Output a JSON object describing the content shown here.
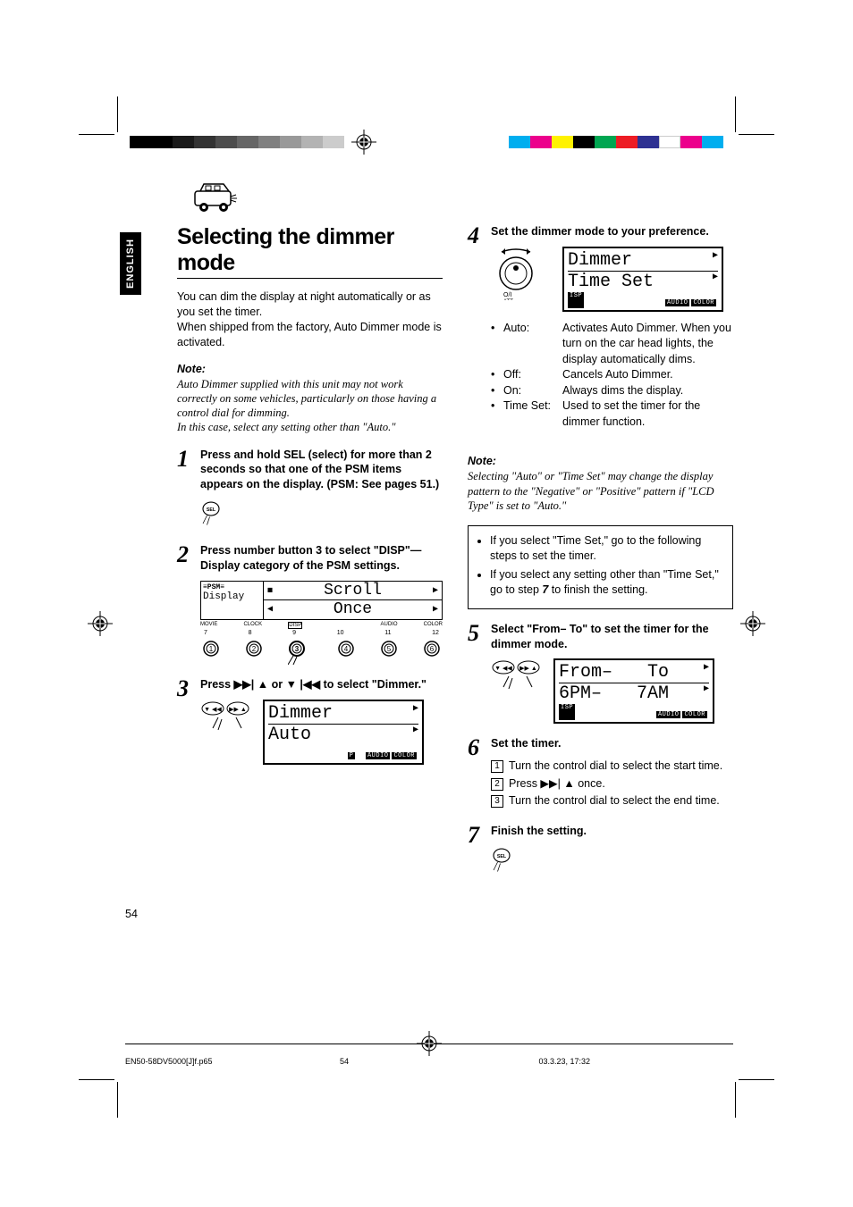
{
  "meta": {
    "language_tab": "ENGLISH",
    "page_number": "54",
    "footer_file": "EN50-58DV5000[J]f.p65",
    "footer_page": "54",
    "footer_date": "03.3.23, 17:32"
  },
  "print_bar": {
    "left_gradient": [
      "#000000",
      "#000000",
      "#1a1a1a",
      "#333333",
      "#4d4d4d",
      "#666666",
      "#808080",
      "#999999",
      "#b3b3b3",
      "#cccccc"
    ],
    "right_gradient": [
      "#00aeef",
      "#ec008c",
      "#fff200",
      "#000000",
      "#00a651",
      "#ed1c24",
      "#2e3192",
      "#ffffff",
      "#ec008c",
      "#00aeef"
    ]
  },
  "title": "Selecting the dimmer mode",
  "intro_p1": "You can dim the display at night automatically or as you set the timer.",
  "intro_p2": "When shipped from the factory, Auto Dimmer mode is activated.",
  "note1": {
    "label": "Note:",
    "lines": [
      "Auto Dimmer supplied with this unit may not work correctly on some vehicles, particularly on those having a control dial for dimming.",
      "In this case, select any setting other than \"Auto.\""
    ]
  },
  "steps_left": [
    {
      "num": "1",
      "title": "Press and hold SEL (select) for more than 2 seconds so that one of the PSM items appears on the display. (PSM: See pages 51.)",
      "graphic": "sel-button"
    },
    {
      "num": "2",
      "title": "Press number button 3 to select \"DISP\"—Display category of the PSM settings.",
      "graphic": "disp-category",
      "display_top": "Scroll",
      "display_bottom": "Once",
      "side_label": "Display",
      "tabs": [
        "MOVIE",
        "CLOCK",
        "DISP",
        "",
        "",
        "AUDIO",
        "COLOR"
      ]
    },
    {
      "num": "3",
      "title_prefix": "Press ",
      "title_mid": " or ",
      "title_suffix": " to select \"Dimmer.\"",
      "graphic": "dimmer-auto",
      "display_top": "Dimmer",
      "display_bottom": "Auto"
    }
  ],
  "steps_right": [
    {
      "num": "4",
      "title": "Set the dimmer mode to your preference.",
      "graphic": "dimmer-timeset",
      "display_top": "Dimmer",
      "display_bottom": "Time Set",
      "options": [
        {
          "label": "Auto:",
          "desc": "Activates Auto Dimmer. When you turn on the car head lights, the display automatically dims."
        },
        {
          "label": "Off:",
          "desc": "Cancels Auto Dimmer."
        },
        {
          "label": "On:",
          "desc": "Always dims the display."
        },
        {
          "label": "Time Set:",
          "desc": "Used to set the timer for the dimmer function."
        }
      ]
    }
  ],
  "note2": {
    "label": "Note:",
    "text": "Selecting \"Auto\" or \"Time Set\" may change the display pattern to the \"Negative\" or \"Positive\" pattern if \"LCD Type\" is set to \"Auto.\""
  },
  "callout": {
    "items": [
      "If you select \"Time Set,\" go to the following steps to set the timer.",
      "If you select any setting other than \"Time Set,\" go to step 7 to finish the setting."
    ],
    "step_ref": "7"
  },
  "step5": {
    "num": "5",
    "title": "Select \"From– To\" to set the timer for the dimmer mode.",
    "display_top_l": "From–",
    "display_top_r": "To",
    "display_bot_l": "6PM–",
    "display_bot_r": "7AM"
  },
  "step6": {
    "num": "6",
    "title": "Set the timer.",
    "subs": [
      "Turn the control dial to select the start time.",
      "Press ▶▶| ▲ once.",
      "Turn the control dial to select the end time."
    ]
  },
  "step7": {
    "num": "7",
    "title": "Finish the setting.",
    "graphic": "sel-button"
  },
  "glyphs": {
    "ffwd_up": "▶▶| ▲",
    "down_rew": "▼ |◀◀"
  }
}
